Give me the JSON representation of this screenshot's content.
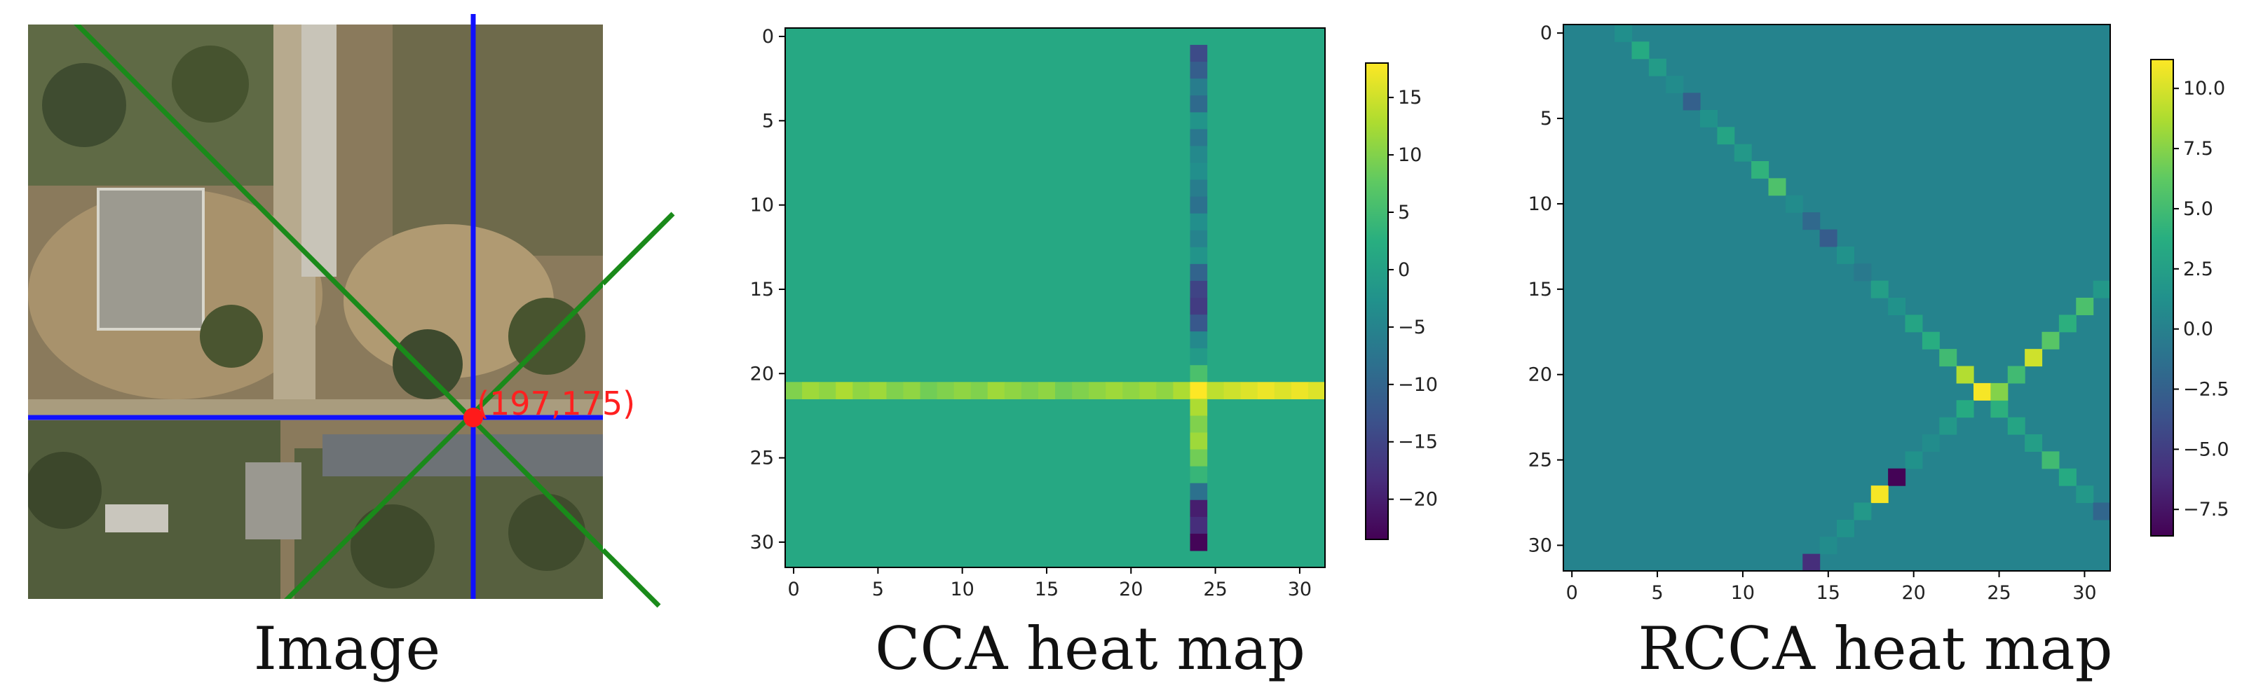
{
  "captions": {
    "image": "Image",
    "cca": "CCA heat map",
    "rcca": "RCCA heat map"
  },
  "image_panel": {
    "point_label": "(197,175)",
    "colors": {
      "horizontal_line": "#1010ff",
      "vertical_line": "#1010ff",
      "diagonal_lines": "#1a8a1a",
      "point": "#ff1a1a"
    }
  },
  "chart_data": [
    {
      "type": "heatmap",
      "title": "",
      "xlabel": "",
      "ylabel": "",
      "grid_size": 32,
      "xticks": [
        0,
        5,
        10,
        15,
        20,
        25,
        30
      ],
      "yticks": [
        0,
        5,
        10,
        15,
        20,
        25,
        30
      ],
      "colormap": "viridis",
      "colorbar": {
        "ticks": [
          15,
          10,
          5,
          0,
          -5,
          -10,
          -15,
          -20
        ],
        "range": [
          -23.5,
          18
        ]
      },
      "background_value": 1.5,
      "cells": [
        {
          "r": 1,
          "c": 24,
          "v": -14
        },
        {
          "r": 2,
          "c": 24,
          "v": -11
        },
        {
          "r": 3,
          "c": 24,
          "v": -6
        },
        {
          "r": 4,
          "c": 24,
          "v": -9
        },
        {
          "r": 5,
          "c": 24,
          "v": -2
        },
        {
          "r": 6,
          "c": 24,
          "v": -7
        },
        {
          "r": 7,
          "c": 24,
          "v": -4
        },
        {
          "r": 8,
          "c": 24,
          "v": -3
        },
        {
          "r": 9,
          "c": 24,
          "v": -6
        },
        {
          "r": 10,
          "c": 24,
          "v": -8
        },
        {
          "r": 11,
          "c": 24,
          "v": -3
        },
        {
          "r": 12,
          "c": 24,
          "v": -5
        },
        {
          "r": 13,
          "c": 24,
          "v": -2
        },
        {
          "r": 14,
          "c": 24,
          "v": -10
        },
        {
          "r": 15,
          "c": 24,
          "v": -15
        },
        {
          "r": 16,
          "c": 24,
          "v": -16
        },
        {
          "r": 17,
          "c": 24,
          "v": -12
        },
        {
          "r": 18,
          "c": 24,
          "v": -4
        },
        {
          "r": 19,
          "c": 24,
          "v": -1
        },
        {
          "r": 20,
          "c": 24,
          "v": 6
        },
        {
          "r": 21,
          "c": 0,
          "v": 10
        },
        {
          "r": 21,
          "c": 1,
          "v": 12
        },
        {
          "r": 21,
          "c": 2,
          "v": 11
        },
        {
          "r": 21,
          "c": 3,
          "v": 13
        },
        {
          "r": 21,
          "c": 4,
          "v": 11
        },
        {
          "r": 21,
          "c": 5,
          "v": 12
        },
        {
          "r": 21,
          "c": 6,
          "v": 10
        },
        {
          "r": 21,
          "c": 7,
          "v": 11
        },
        {
          "r": 21,
          "c": 8,
          "v": 9
        },
        {
          "r": 21,
          "c": 9,
          "v": 10
        },
        {
          "r": 21,
          "c": 10,
          "v": 11
        },
        {
          "r": 21,
          "c": 11,
          "v": 10
        },
        {
          "r": 21,
          "c": 12,
          "v": 12
        },
        {
          "r": 21,
          "c": 13,
          "v": 11
        },
        {
          "r": 21,
          "c": 14,
          "v": 10
        },
        {
          "r": 21,
          "c": 15,
          "v": 11
        },
        {
          "r": 21,
          "c": 16,
          "v": 9
        },
        {
          "r": 21,
          "c": 17,
          "v": 10
        },
        {
          "r": 21,
          "c": 18,
          "v": 11
        },
        {
          "r": 21,
          "c": 19,
          "v": 12
        },
        {
          "r": 21,
          "c": 20,
          "v": 11
        },
        {
          "r": 21,
          "c": 21,
          "v": 12
        },
        {
          "r": 21,
          "c": 22,
          "v": 11
        },
        {
          "r": 21,
          "c": 23,
          "v": 13
        },
        {
          "r": 21,
          "c": 24,
          "v": 18
        },
        {
          "r": 21,
          "c": 25,
          "v": 14
        },
        {
          "r": 21,
          "c": 26,
          "v": 15
        },
        {
          "r": 21,
          "c": 27,
          "v": 16
        },
        {
          "r": 21,
          "c": 28,
          "v": 17
        },
        {
          "r": 21,
          "c": 29,
          "v": 16
        },
        {
          "r": 21,
          "c": 30,
          "v": 17
        },
        {
          "r": 21,
          "c": 31,
          "v": 16
        },
        {
          "r": 22,
          "c": 24,
          "v": 13
        },
        {
          "r": 23,
          "c": 24,
          "v": 10
        },
        {
          "r": 24,
          "c": 24,
          "v": 12
        },
        {
          "r": 25,
          "c": 24,
          "v": 9
        },
        {
          "r": 26,
          "c": 24,
          "v": 4
        },
        {
          "r": 27,
          "c": 24,
          "v": -8
        },
        {
          "r": 28,
          "c": 24,
          "v": -20
        },
        {
          "r": 29,
          "c": 24,
          "v": -18
        },
        {
          "r": 30,
          "c": 24,
          "v": -23
        }
      ]
    },
    {
      "type": "heatmap",
      "title": "",
      "xlabel": "",
      "ylabel": "",
      "grid_size": 32,
      "xticks": [
        0,
        5,
        10,
        15,
        20,
        25,
        30
      ],
      "yticks": [
        0,
        5,
        10,
        15,
        20,
        25,
        30
      ],
      "colormap": "viridis",
      "colorbar": {
        "ticks": [
          10.0,
          7.5,
          5.0,
          2.5,
          0.0,
          -2.5,
          -5.0,
          -7.5
        ],
        "range": [
          -8.6,
          11.2
        ]
      },
      "background_value": 0.3,
      "cells": [
        {
          "r": 0,
          "c": 3,
          "v": 1.2
        },
        {
          "r": 1,
          "c": 4,
          "v": 3.5
        },
        {
          "r": 2,
          "c": 5,
          "v": 2.2
        },
        {
          "r": 3,
          "c": 6,
          "v": 1.0
        },
        {
          "r": 4,
          "c": 7,
          "v": -2.5
        },
        {
          "r": 5,
          "c": 8,
          "v": 1.5
        },
        {
          "r": 6,
          "c": 9,
          "v": 3.0
        },
        {
          "r": 7,
          "c": 10,
          "v": 2.0
        },
        {
          "r": 8,
          "c": 11,
          "v": 4.2
        },
        {
          "r": 9,
          "c": 12,
          "v": 5.6
        },
        {
          "r": 10,
          "c": 13,
          "v": 1.0
        },
        {
          "r": 11,
          "c": 14,
          "v": -1.8
        },
        {
          "r": 12,
          "c": 15,
          "v": -2.8
        },
        {
          "r": 13,
          "c": 16,
          "v": 1.5
        },
        {
          "r": 14,
          "c": 17,
          "v": -0.5
        },
        {
          "r": 15,
          "c": 18,
          "v": 2.5
        },
        {
          "r": 16,
          "c": 19,
          "v": 1.5
        },
        {
          "r": 17,
          "c": 20,
          "v": 3.0
        },
        {
          "r": 18,
          "c": 21,
          "v": 3.8
        },
        {
          "r": 19,
          "c": 22,
          "v": 5.0
        },
        {
          "r": 20,
          "c": 23,
          "v": 9.0
        },
        {
          "r": 21,
          "c": 24,
          "v": 11.0
        },
        {
          "r": 22,
          "c": 25,
          "v": 4.0
        },
        {
          "r": 23,
          "c": 26,
          "v": 3.0
        },
        {
          "r": 24,
          "c": 27,
          "v": 2.5
        },
        {
          "r": 25,
          "c": 28,
          "v": 5.0
        },
        {
          "r": 26,
          "c": 29,
          "v": 3.5
        },
        {
          "r": 27,
          "c": 30,
          "v": 2.0
        },
        {
          "r": 28,
          "c": 31,
          "v": -2.0
        },
        {
          "r": 15,
          "c": 31,
          "v": 2.0
        },
        {
          "r": 16,
          "c": 30,
          "v": 5.5
        },
        {
          "r": 17,
          "c": 29,
          "v": 4.0
        },
        {
          "r": 18,
          "c": 28,
          "v": 6.0
        },
        {
          "r": 19,
          "c": 27,
          "v": 9.8
        },
        {
          "r": 20,
          "c": 26,
          "v": 5.0
        },
        {
          "r": 21,
          "c": 25,
          "v": 7.5
        },
        {
          "r": 22,
          "c": 23,
          "v": 3.5
        },
        {
          "r": 23,
          "c": 22,
          "v": 2.0
        },
        {
          "r": 24,
          "c": 21,
          "v": 1.0
        },
        {
          "r": 25,
          "c": 20,
          "v": 1.5
        },
        {
          "r": 26,
          "c": 19,
          "v": -8.5
        },
        {
          "r": 27,
          "c": 18,
          "v": 11.0
        },
        {
          "r": 28,
          "c": 17,
          "v": 2.0
        },
        {
          "r": 29,
          "c": 16,
          "v": 1.5
        },
        {
          "r": 30,
          "c": 15,
          "v": 1.0
        },
        {
          "r": 31,
          "c": 14,
          "v": -6.0
        }
      ]
    }
  ]
}
